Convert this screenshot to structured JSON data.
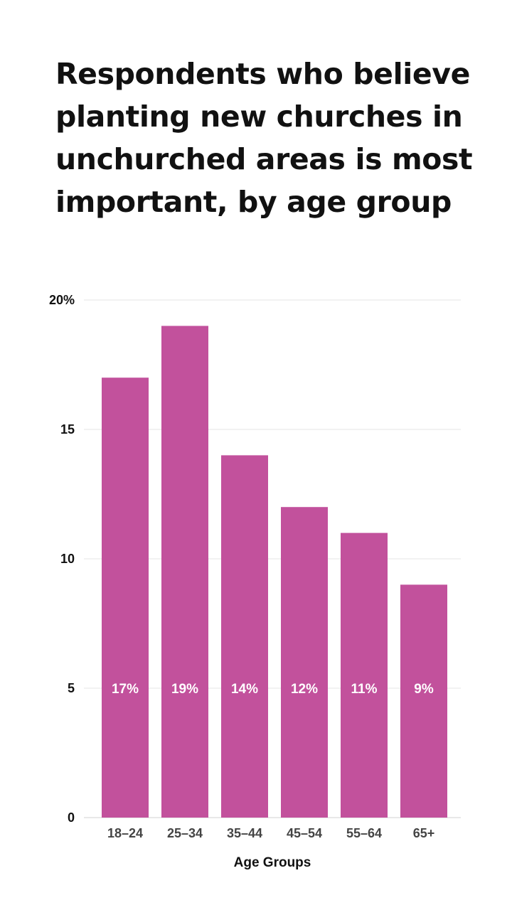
{
  "chart_data": {
    "type": "bar",
    "title": "Respondents who believe planting new churches in unchurched areas is most important, by age group",
    "categories": [
      "18–24",
      "25–34",
      "35–44",
      "45–54",
      "55–64",
      "65+"
    ],
    "values": [
      17,
      19,
      14,
      12,
      11,
      9
    ],
    "data_labels": [
      "17%",
      "19%",
      "14%",
      "12%",
      "11%",
      "9%"
    ],
    "xlabel": "Age Groups",
    "ylabel": "",
    "ylim": [
      0,
      20
    ],
    "yticks": [
      0,
      5,
      10,
      15,
      20
    ],
    "ytick_labels": [
      "0",
      "5",
      "10",
      "15",
      "20%"
    ],
    "grid": true,
    "colors": {
      "bar": "#c2519c",
      "grid": "#e6e6e6",
      "baseline": "#d0d0d0"
    }
  }
}
